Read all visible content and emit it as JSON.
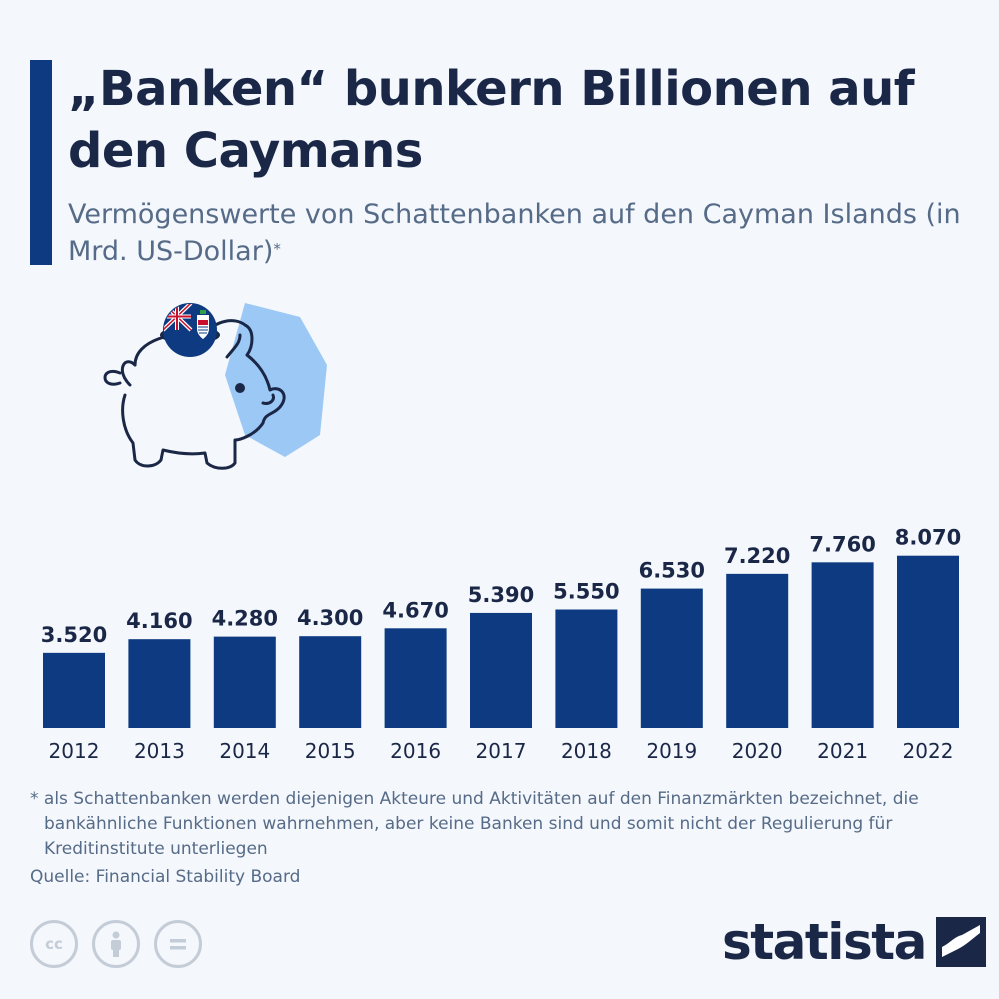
{
  "header": {
    "title": "„Banken“ bunkern Billionen auf den Caymans",
    "subtitle": "Vermögenswerte von Schattenbanken auf den Cayman Islands (in Mrd. US-Dollar)",
    "subtitle_mark": "*"
  },
  "chart_data": {
    "type": "bar",
    "categories": [
      "2012",
      "2013",
      "2014",
      "2015",
      "2016",
      "2017",
      "2018",
      "2019",
      "2020",
      "2021",
      "2022"
    ],
    "values": [
      3520,
      4160,
      4280,
      4300,
      4670,
      5390,
      5550,
      6530,
      7220,
      7760,
      8070
    ],
    "value_labels": [
      "3.520",
      "4.160",
      "4.280",
      "4.300",
      "4.670",
      "5.390",
      "5.550",
      "6.530",
      "7.220",
      "7.760",
      "8.070"
    ],
    "ylim": [
      0,
      9000
    ],
    "grid": false,
    "bar_color": "#0d3a80"
  },
  "footer": {
    "footnote": "* als Schattenbanken werden diejenigen Akteure und Aktivitäten auf den Finanzmärkten bezeichnet, die bankähnliche Funktionen wahrnehmen, aber keine Banken sind und somit nicht der Regulierung für Kreditinstitute unterliegen",
    "source": "Quelle: Financial Stability Board",
    "brand": "statista"
  },
  "colors": {
    "navy": "#0d3a80",
    "title_text": "#1a2747",
    "muted_text": "#566b88",
    "piggy_bg": "#9cc8f5"
  },
  "icons": [
    "cc-icon",
    "attribution-icon",
    "no-derivatives-icon",
    "statista-logo-icon",
    "piggy-bank-icon",
    "cayman-flag-icon"
  ]
}
